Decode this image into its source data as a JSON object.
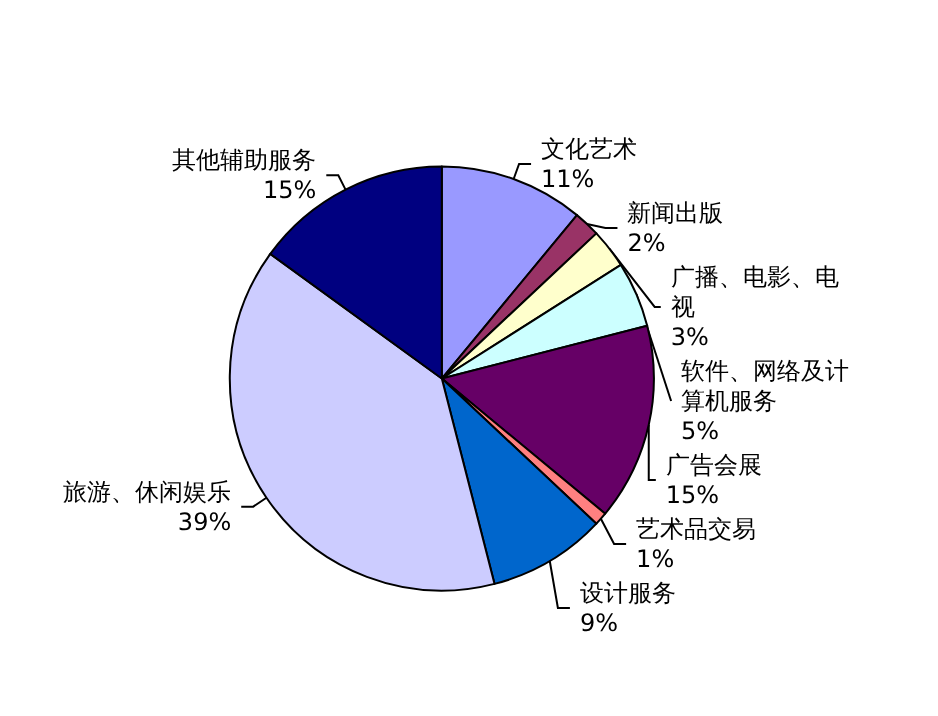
{
  "chart_data": {
    "type": "pie",
    "categories": [
      "文化艺术",
      "新闻出版",
      "广播、电影、电视",
      "软件、网络及计算机服务",
      "广告会展",
      "艺术品交易",
      "设计服务",
      "旅游、休闲娱乐",
      "其他辅助服务"
    ],
    "values": [
      11,
      2,
      3,
      5,
      15,
      1,
      9,
      39,
      15
    ],
    "colors": [
      "#9999ff",
      "#993366",
      "#ffffcc",
      "#ccffff",
      "#660066",
      "#ff8080",
      "#0066cc",
      "#ccccff",
      "#000080"
    ],
    "value_labels": [
      "11%",
      "2%",
      "3%",
      "5%",
      "15%",
      "1%",
      "9%",
      "39%",
      "15%"
    ],
    "legend": false
  }
}
